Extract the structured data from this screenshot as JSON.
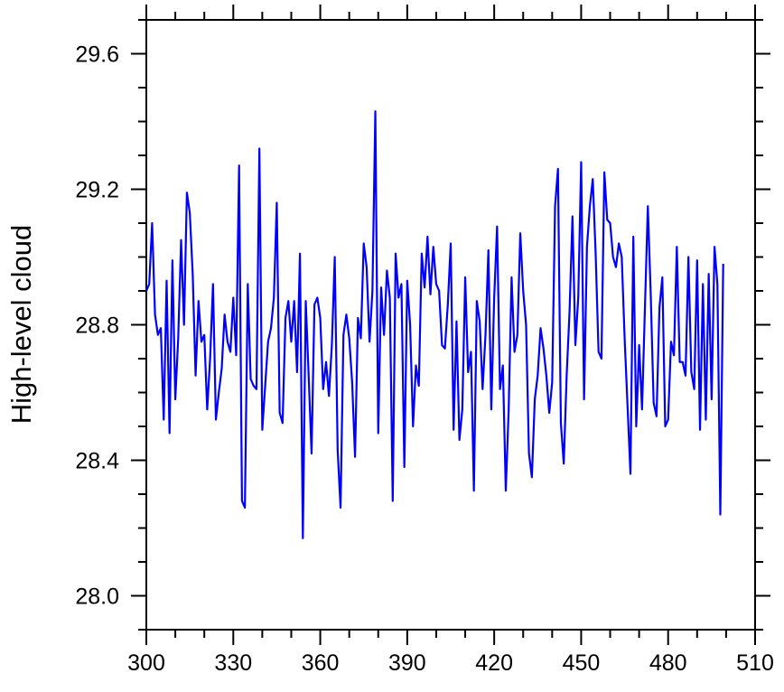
{
  "chart_data": {
    "type": "line",
    "ylabel": "High-level cloud",
    "x": [
      300,
      301,
      302,
      303,
      304,
      305,
      306,
      307,
      308,
      309,
      310,
      311,
      312,
      313,
      314,
      315,
      316,
      317,
      318,
      319,
      320,
      321,
      322,
      323,
      324,
      325,
      326,
      327,
      328,
      329,
      330,
      331,
      332,
      333,
      334,
      335,
      336,
      337,
      338,
      339,
      340,
      341,
      342,
      343,
      344,
      345,
      346,
      347,
      348,
      349,
      350,
      351,
      352,
      353,
      354,
      355,
      356,
      357,
      358,
      359,
      360,
      361,
      362,
      363,
      364,
      365,
      366,
      367,
      368,
      369,
      370,
      371,
      372,
      373,
      374,
      375,
      376,
      377,
      378,
      379,
      380,
      381,
      382,
      383,
      384,
      385,
      386,
      387,
      388,
      389,
      390,
      391,
      392,
      393,
      394,
      395,
      396,
      397,
      398,
      399,
      400,
      401,
      402,
      403,
      404,
      405,
      406,
      407,
      408,
      409,
      410,
      411,
      412,
      413,
      414,
      415,
      416,
      417,
      418,
      419,
      420,
      421,
      422,
      423,
      424,
      425,
      426,
      427,
      428,
      429,
      430,
      431,
      432,
      433,
      434,
      435,
      436,
      437,
      438,
      439,
      440,
      441,
      442,
      443,
      444,
      445,
      446,
      447,
      448,
      449,
      450,
      451,
      452,
      453,
      454,
      455,
      456,
      457,
      458,
      459,
      460,
      461,
      462,
      463,
      464,
      465,
      466,
      467,
      468,
      469,
      470,
      471,
      472,
      473,
      474,
      475,
      476,
      477,
      478,
      479,
      480,
      481,
      482,
      483,
      484,
      485,
      486,
      487,
      488,
      489,
      490,
      491,
      492,
      493,
      494,
      495,
      496,
      497,
      498,
      499
    ],
    "series": [
      {
        "color": "#0000ff",
        "values": [
          28.9,
          28.92,
          29.1,
          28.83,
          28.77,
          28.79,
          28.52,
          28.93,
          28.48,
          28.99,
          28.58,
          28.76,
          29.05,
          28.8,
          29.19,
          29.13,
          28.95,
          28.65,
          28.87,
          28.75,
          28.77,
          28.55,
          28.7,
          28.92,
          28.52,
          28.6,
          28.67,
          28.83,
          28.75,
          28.72,
          28.88,
          28.71,
          29.27,
          28.28,
          28.26,
          28.92,
          28.64,
          28.62,
          28.61,
          29.32,
          28.49,
          28.62,
          28.75,
          28.79,
          28.88,
          29.16,
          28.54,
          28.51,
          28.82,
          28.87,
          28.75,
          28.87,
          28.66,
          29.01,
          28.17,
          28.87,
          28.65,
          28.42,
          28.86,
          28.88,
          28.82,
          28.61,
          28.69,
          28.59,
          28.74,
          29.0,
          28.43,
          28.26,
          28.77,
          28.83,
          28.76,
          28.63,
          28.41,
          28.82,
          28.76,
          29.04,
          28.97,
          28.75,
          28.9,
          29.43,
          28.48,
          28.91,
          28.77,
          28.96,
          28.88,
          28.28,
          29.01,
          28.88,
          28.92,
          28.38,
          28.93,
          28.8,
          28.5,
          28.68,
          28.62,
          29.01,
          28.91,
          29.06,
          28.89,
          29.03,
          28.92,
          28.9,
          28.74,
          28.73,
          28.86,
          29.04,
          28.49,
          28.81,
          28.46,
          28.55,
          28.94,
          28.66,
          28.72,
          28.31,
          28.87,
          28.81,
          28.61,
          28.77,
          29.02,
          28.55,
          28.88,
          29.09,
          28.61,
          28.68,
          28.31,
          28.55,
          28.94,
          28.72,
          28.77,
          29.07,
          28.9,
          28.8,
          28.42,
          28.35,
          28.58,
          28.65,
          28.79,
          28.73,
          28.65,
          28.54,
          28.63,
          29.15,
          29.26,
          28.51,
          28.39,
          28.65,
          28.84,
          29.12,
          28.74,
          28.88,
          29.28,
          28.58,
          29.03,
          29.15,
          29.23,
          29.01,
          28.72,
          28.7,
          29.25,
          29.11,
          29.1,
          29.0,
          28.97,
          29.04,
          29.0,
          28.76,
          28.56,
          28.36,
          29.06,
          28.5,
          28.74,
          28.55,
          28.85,
          29.15,
          28.89,
          28.57,
          28.53,
          28.85,
          28.94,
          28.5,
          28.52,
          28.75,
          28.71,
          29.03,
          28.69,
          28.69,
          28.65,
          29.0,
          28.66,
          28.61,
          28.99,
          28.49,
          28.92,
          28.52,
          28.95,
          28.58,
          29.03,
          28.92,
          28.24,
          28.98
        ]
      }
    ],
    "xlim": [
      300,
      510
    ],
    "xticks": [
      300,
      330,
      360,
      390,
      420,
      450,
      480,
      510
    ],
    "xminorticks": [
      310,
      320,
      340,
      350,
      370,
      380,
      400,
      410,
      430,
      440,
      460,
      470,
      490,
      500
    ],
    "ylim": [
      27.9,
      29.7
    ],
    "yticks": [
      {
        "value": 28,
        "label": "28.0"
      },
      28.4,
      28.8,
      29.2,
      29.6
    ],
    "yminorticks": [
      27.9,
      28.1,
      28.2,
      28.3,
      28.5,
      28.6,
      28.7,
      28.9,
      29.0,
      29.1,
      29.3,
      29.4,
      29.5,
      29.7
    ]
  }
}
